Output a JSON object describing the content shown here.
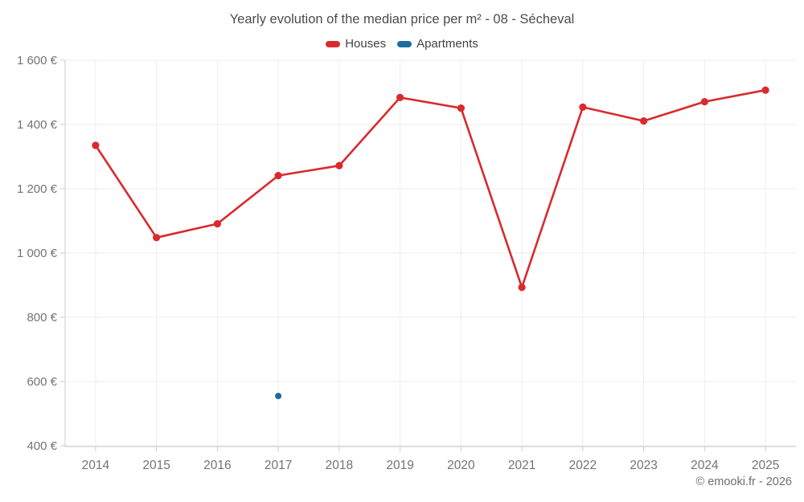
{
  "title": "Yearly evolution of the median price per m² - 08 - Sécheval",
  "legend": [
    {
      "label": "Houses",
      "color": "#d92a2e"
    },
    {
      "label": "Apartments",
      "color": "#1a6d9e"
    }
  ],
  "copyright": "© emooki.fr - 2026",
  "colors": {
    "houses": "#d92a2e",
    "apartments": "#1a6d9e",
    "grid": "#ededed",
    "axis_line": "#cccccc",
    "axis_label": "#737373",
    "title_text": "#4c4c4c"
  },
  "chart_data": {
    "type": "line",
    "title": "Yearly evolution of the median price per m² - 08 - Sécheval",
    "categories": [
      "2014",
      "2015",
      "2016",
      "2017",
      "2018",
      "2019",
      "2020",
      "2021",
      "2022",
      "2023",
      "2024",
      "2025"
    ],
    "series": [
      {
        "name": "Houses",
        "color": "#d92a2e",
        "values": [
          1335,
          1048,
          1091,
          1241,
          1272,
          1484,
          1451,
          893,
          1454,
          1411,
          1471,
          1507
        ]
      },
      {
        "name": "Apartments",
        "color": "#1a6d9e",
        "values": [
          null,
          null,
          null,
          555,
          null,
          null,
          null,
          null,
          null,
          null,
          null,
          null
        ]
      }
    ],
    "xlabel": "",
    "ylabel": "",
    "ylim": [
      400,
      1600
    ],
    "yticks": [
      400,
      600,
      800,
      1000,
      1200,
      1400,
      1600
    ],
    "ytick_suffix": " €",
    "grid": true,
    "legend_position": "top"
  }
}
